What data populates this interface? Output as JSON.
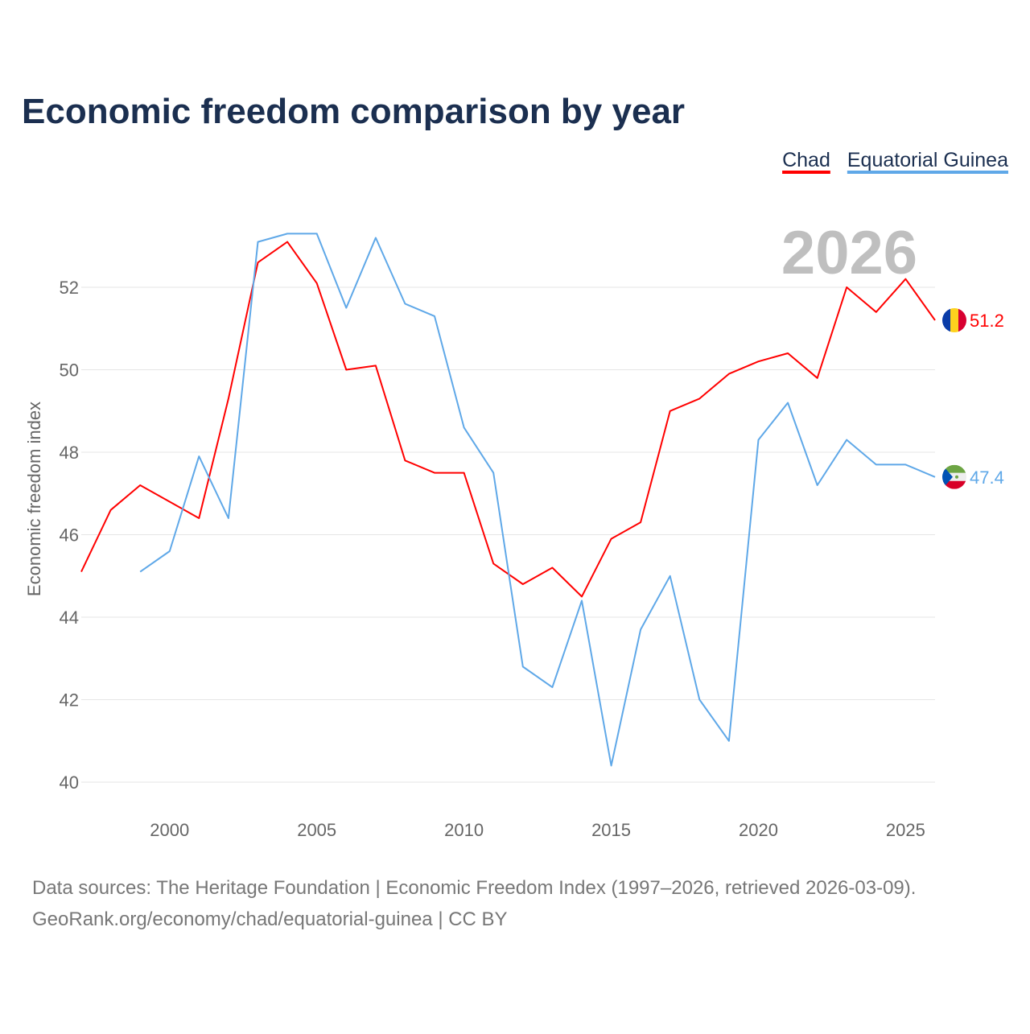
{
  "chart_data": {
    "type": "line",
    "title": "Economic freedom comparison by year",
    "xlabel": "",
    "ylabel": "Economic freedom index",
    "xlim": [
      1997,
      2026
    ],
    "ylim": [
      40,
      53.5
    ],
    "x_ticks": [
      2000,
      2005,
      2010,
      2015,
      2020,
      2025
    ],
    "y_ticks": [
      40,
      42,
      44,
      46,
      48,
      50,
      52
    ],
    "grid": "horizontal",
    "legend_placement": "top-right",
    "watermark_year": "2026",
    "x": [
      1997,
      1998,
      1999,
      2000,
      2001,
      2002,
      2003,
      2004,
      2005,
      2006,
      2007,
      2008,
      2009,
      2010,
      2011,
      2012,
      2013,
      2014,
      2015,
      2016,
      2017,
      2018,
      2019,
      2020,
      2021,
      2022,
      2023,
      2024,
      2025,
      2026
    ],
    "series": [
      {
        "name": "Chad",
        "color": "#ff0000",
        "end_label": "51.2",
        "flag": "chad-flag",
        "values": [
          45.1,
          46.6,
          47.2,
          46.8,
          46.4,
          49.3,
          52.6,
          53.1,
          52.1,
          50.0,
          50.1,
          47.8,
          47.5,
          47.5,
          45.3,
          44.8,
          45.2,
          44.5,
          45.9,
          46.3,
          49.0,
          49.3,
          49.9,
          50.2,
          50.4,
          49.8,
          52.0,
          51.4,
          52.2,
          51.2
        ]
      },
      {
        "name": "Equatorial Guinea",
        "color": "#5fa8e8",
        "end_label": "47.4",
        "flag": "equatorial-guinea-flag",
        "values": [
          null,
          null,
          45.1,
          45.6,
          47.9,
          46.4,
          53.1,
          53.3,
          53.3,
          51.5,
          53.2,
          51.6,
          51.3,
          48.6,
          47.5,
          42.8,
          42.3,
          44.4,
          40.4,
          43.7,
          45.0,
          42.0,
          41.0,
          48.3,
          49.2,
          47.2,
          48.3,
          47.7,
          47.7,
          47.4
        ]
      }
    ]
  },
  "footer": {
    "line1": "Data sources: The Heritage Foundation | Economic Freedom Index (1997–2026, retrieved 2026-03-09).",
    "line2": "GeoRank.org/economy/chad/equatorial-guinea | CC BY"
  }
}
